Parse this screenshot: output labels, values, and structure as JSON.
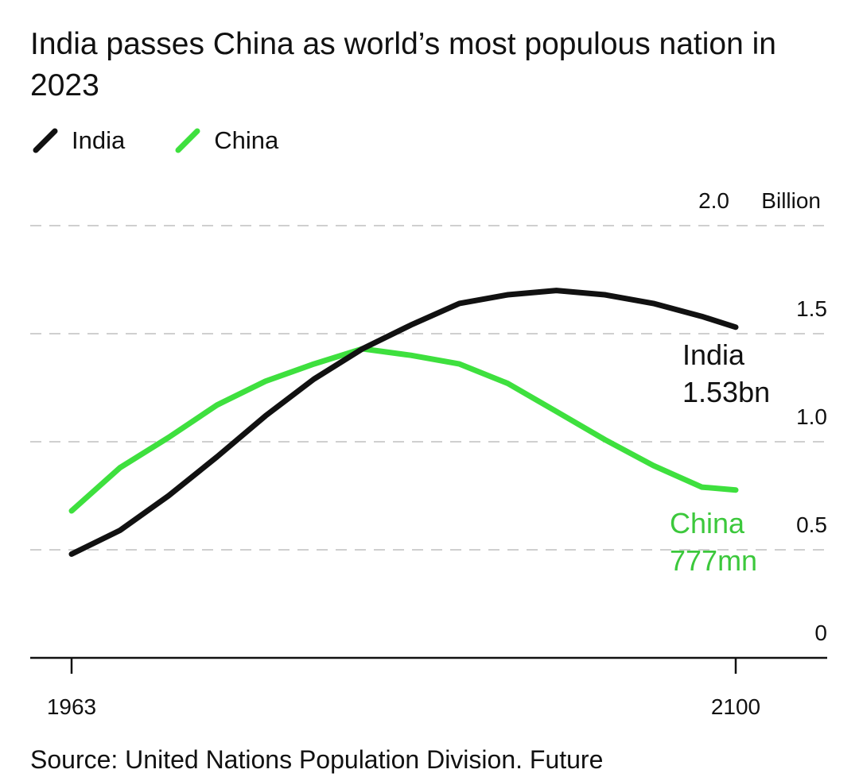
{
  "title": "India passes China as world’s most populous nation in 2023",
  "legend": [
    {
      "name": "India",
      "color": "#111111"
    },
    {
      "name": "China",
      "color": "#3ee03e"
    }
  ],
  "source": "Source: United Nations Population Division. Future",
  "annotations": {
    "india_name": "India",
    "india_value": "1.53bn",
    "china_name": "China",
    "china_value": "777mn"
  },
  "chart_data": {
    "type": "line",
    "title": "India passes China as world’s most populous nation in 2023",
    "xlabel": "",
    "ylabel": "",
    "unit_label": "Billion",
    "xlim": [
      1963,
      2100
    ],
    "ylim": [
      0,
      2.0
    ],
    "x_tick_labels": [
      "1963",
      "2100"
    ],
    "y_ticks": [
      {
        "value": 0,
        "label": "0"
      },
      {
        "value": 0.5,
        "label": "0.5"
      },
      {
        "value": 1.0,
        "label": "1.0"
      },
      {
        "value": 1.5,
        "label": "1.5"
      },
      {
        "value": 2.0,
        "label": "2.0"
      }
    ],
    "gridlines": true,
    "legend_position": "top-left",
    "series": [
      {
        "name": "India",
        "color": "#111111",
        "x": [
          1963,
          1973,
          1983,
          1993,
          2003,
          2013,
          2023,
          2033,
          2043,
          2053,
          2063,
          2073,
          2083,
          2093,
          2100
        ],
        "y": [
          0.48,
          0.59,
          0.75,
          0.93,
          1.12,
          1.29,
          1.43,
          1.54,
          1.64,
          1.68,
          1.7,
          1.68,
          1.64,
          1.58,
          1.53
        ]
      },
      {
        "name": "China",
        "color": "#3ee03e",
        "x": [
          1963,
          1973,
          1983,
          1993,
          2003,
          2013,
          2023,
          2033,
          2043,
          2053,
          2063,
          2073,
          2083,
          2093,
          2100
        ],
        "y": [
          0.68,
          0.88,
          1.02,
          1.17,
          1.28,
          1.36,
          1.43,
          1.4,
          1.36,
          1.27,
          1.14,
          1.01,
          0.89,
          0.79,
          0.777
        ]
      }
    ]
  }
}
